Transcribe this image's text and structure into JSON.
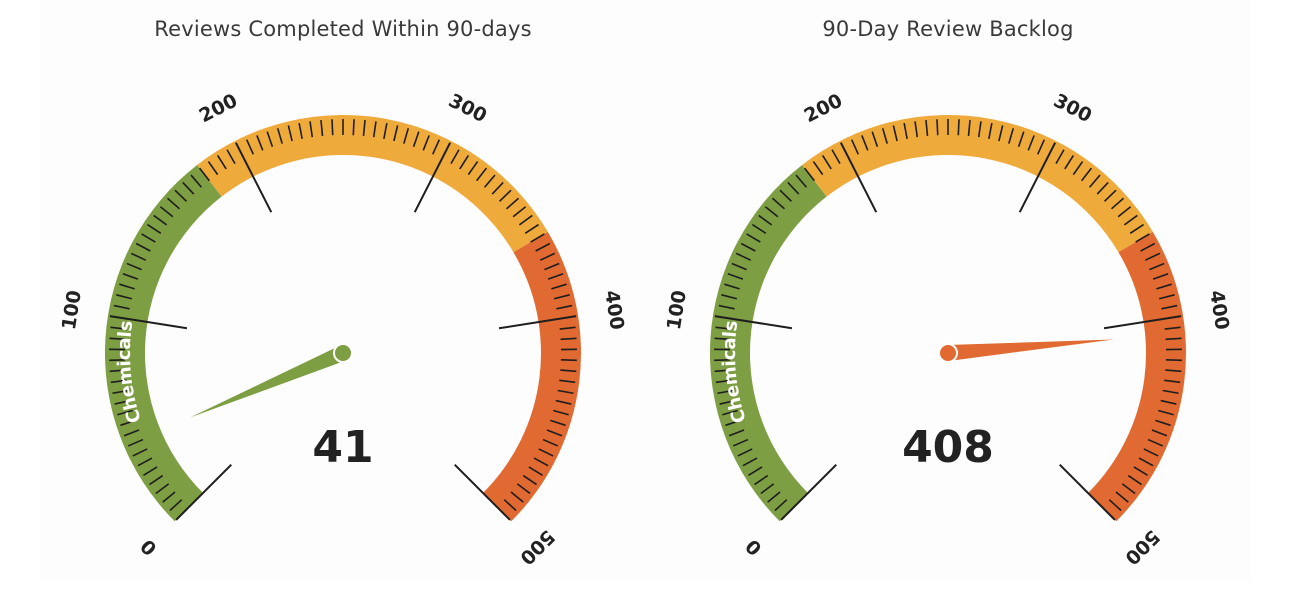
{
  "chart_data": [
    {
      "type": "gauge",
      "title": "Reviews Completed Within 90-days",
      "value": 41,
      "display_value": "41",
      "min": 0,
      "max": 500,
      "major_ticks": [
        0,
        100,
        200,
        300,
        400,
        500
      ],
      "tick_labels": [
        "0",
        "100",
        "200",
        "300",
        "400",
        "500"
      ],
      "band_label": "Chemicals",
      "bands": [
        {
          "from": 0,
          "to": 180,
          "color": "#7e9e44"
        },
        {
          "from": 180,
          "to": 360,
          "color": "#efaa3c"
        },
        {
          "from": 360,
          "to": 500,
          "color": "#e06a32"
        }
      ],
      "needle_color": "#7e9e44"
    },
    {
      "type": "gauge",
      "title": "90-Day Review Backlog",
      "value": 408,
      "display_value": "408",
      "min": 0,
      "max": 500,
      "major_ticks": [
        0,
        100,
        200,
        300,
        400,
        500
      ],
      "tick_labels": [
        "0",
        "100",
        "200",
        "300",
        "400",
        "500"
      ],
      "band_label": "Chemicals",
      "bands": [
        {
          "from": 0,
          "to": 180,
          "color": "#7e9e44"
        },
        {
          "from": 180,
          "to": 360,
          "color": "#efaa3c"
        },
        {
          "from": 360,
          "to": 500,
          "color": "#e06a32"
        }
      ],
      "needle_color": "#e06a32"
    }
  ]
}
